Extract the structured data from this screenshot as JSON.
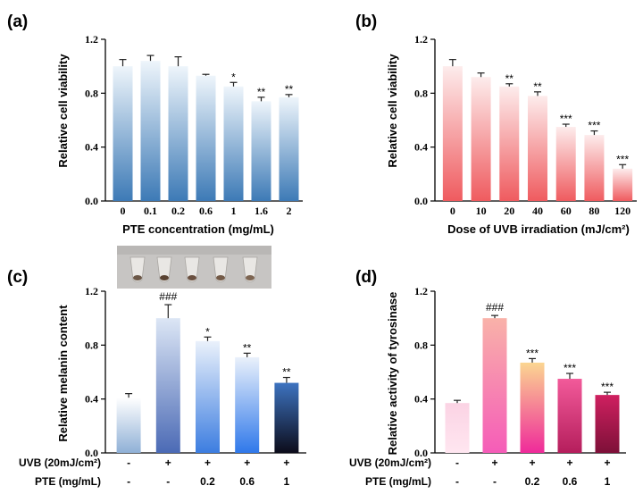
{
  "chart_data": [
    {
      "type": "bar",
      "panel": "(a)",
      "title": "",
      "ylabel": "Relative cell viability",
      "xlabel": "PTE concentration (mg/mL)",
      "ylim": [
        0,
        1.2
      ],
      "yticks": [
        "0.0",
        "0.4",
        "0.8",
        "1.2"
      ],
      "categories": [
        "0",
        "0.1",
        "0.2",
        "0.6",
        "1",
        "1.6",
        "2"
      ],
      "values": [
        1.0,
        1.04,
        1.0,
        0.93,
        0.85,
        0.74,
        0.77
      ],
      "errors": [
        0.05,
        0.04,
        0.07,
        0.01,
        0.03,
        0.03,
        0.02
      ],
      "significance": [
        "",
        "",
        "",
        "",
        "*",
        "**",
        "**"
      ],
      "color_top": "#eef5fb",
      "color_bottom": "#3d7ab6"
    },
    {
      "type": "bar",
      "panel": "(b)",
      "title": "",
      "ylabel": "Relative cell viability",
      "xlabel": "Dose of UVB irradiation (mJ/cm²)",
      "ylim": [
        0,
        1.2
      ],
      "yticks": [
        "0.0",
        "0.4",
        "0.8",
        "1.2"
      ],
      "categories": [
        "0",
        "10",
        "20",
        "40",
        "60",
        "80",
        "120"
      ],
      "values": [
        1.0,
        0.92,
        0.85,
        0.78,
        0.55,
        0.49,
        0.24
      ],
      "errors": [
        0.05,
        0.03,
        0.02,
        0.03,
        0.02,
        0.03,
        0.03
      ],
      "significance": [
        "",
        "",
        "**",
        "**",
        "***",
        "***",
        "***"
      ],
      "color_top": "#fdecec",
      "color_bottom": "#ef5b5f"
    },
    {
      "type": "bar",
      "panel": "(c)",
      "title": "",
      "ylabel": "Relative melanin content",
      "ylim": [
        0,
        1.2
      ],
      "yticks": [
        "0.0",
        "0.4",
        "0.8",
        "1.2"
      ],
      "row_labels": [
        "UVB (20mJ/cm²)",
        "PTE (mg/mL)"
      ],
      "row_values": [
        [
          "-",
          "+",
          "+",
          "+",
          "+"
        ],
        [
          "-",
          "-",
          "0.2",
          "0.6",
          "1"
        ]
      ],
      "values": [
        0.41,
        1.0,
        0.83,
        0.71,
        0.52
      ],
      "errors": [
        0.03,
        0.1,
        0.03,
        0.03,
        0.04
      ],
      "significance": [
        "",
        "###",
        "*",
        "**",
        "**"
      ],
      "bar_colors": [
        [
          "#ffffff",
          "#8fb0d6"
        ],
        [
          "#dce6f5",
          "#4b6ab5"
        ],
        [
          "#eaf1fb",
          "#3c7de0"
        ],
        [
          "#eaf1fb",
          "#2f78ea"
        ],
        [
          "#3d73c0",
          "#0c0c1a"
        ]
      ]
    },
    {
      "type": "bar",
      "panel": "(d)",
      "title": "",
      "ylabel": "Relative activity of tyrosinase",
      "ylim": [
        0,
        1.2
      ],
      "yticks": [
        "0.0",
        "0.4",
        "0.8",
        "1.2"
      ],
      "row_labels": [
        "UVB (20mJ/cm²)",
        "PTE (mg/mL)"
      ],
      "row_values": [
        [
          "-",
          "+",
          "+",
          "+",
          "+"
        ],
        [
          "-",
          "-",
          "0.2",
          "0.6",
          "1"
        ]
      ],
      "values": [
        0.37,
        1.0,
        0.67,
        0.55,
        0.43
      ],
      "errors": [
        0.02,
        0.02,
        0.03,
        0.04,
        0.02
      ],
      "significance": [
        "",
        "###",
        "***",
        "***",
        "***"
      ],
      "bar_colors": [
        [
          "#fbd3e4",
          "#ffe6f0"
        ],
        [
          "#f9b2a9",
          "#f55cb8"
        ],
        [
          "#fbd691",
          "#ef2a9a"
        ],
        [
          "#f25a9a",
          "#b51e5c"
        ],
        [
          "#cf2060",
          "#7d1038"
        ]
      ]
    }
  ]
}
